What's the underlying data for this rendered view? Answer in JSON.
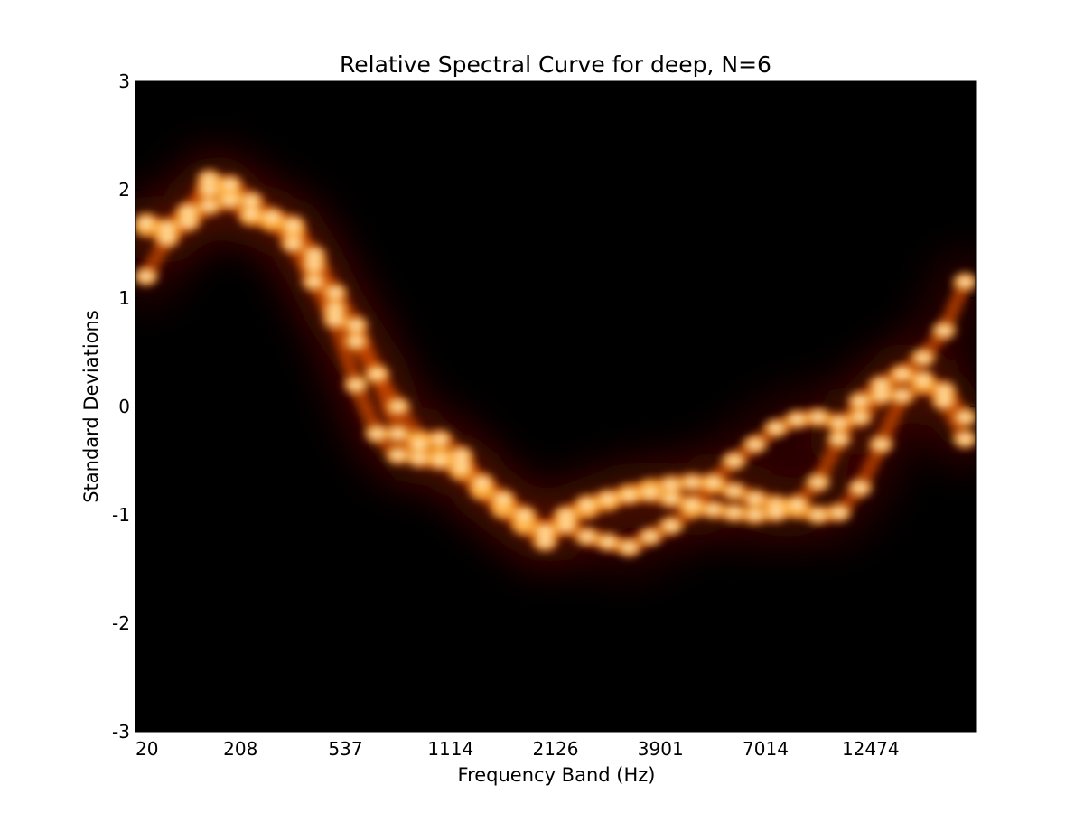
{
  "chart_data": {
    "type": "heatmap",
    "title": "Relative Spectral Curve for deep, N=6",
    "xlabel": "Frequency Band (Hz)",
    "ylabel": "Standard Deviations",
    "ylim": [
      -3,
      3
    ],
    "x_tick_labels": [
      "20",
      "208",
      "537",
      "1114",
      "2126",
      "3901",
      "7014",
      "12474"
    ],
    "y_tick_labels": [
      "3",
      "2",
      "1",
      "0",
      "-1",
      "-2",
      "-3"
    ],
    "colormap": "afmhot",
    "colors": {
      "low": "#000000",
      "mid": "#c84800",
      "high": "#ffffff",
      "background": "#ffffff"
    },
    "band_count": 40,
    "series": [
      {
        "values": [
          1.65,
          1.6,
          1.75,
          2.1,
          1.95,
          1.75,
          1.7,
          1.62,
          1.3,
          0.9,
          0.6,
          0.3,
          0.0,
          -0.3,
          -0.45,
          -0.6,
          -0.78,
          -0.95,
          -1.1,
          -1.25,
          -1.05,
          -0.95,
          -0.88,
          -0.8,
          -0.75,
          -0.72,
          -0.7,
          -0.72,
          -0.78,
          -0.85,
          -0.9,
          -0.95,
          -1.0,
          -0.98,
          -0.75,
          -0.35,
          0.1,
          0.2,
          0.15,
          -0.1
        ]
      },
      {
        "values": [
          1.2,
          1.55,
          1.7,
          1.85,
          1.9,
          1.78,
          1.72,
          1.5,
          1.15,
          0.8,
          0.2,
          -0.25,
          -0.45,
          -0.35,
          -0.3,
          -0.45,
          -0.75,
          -0.9,
          -1.05,
          -1.15,
          -1.1,
          -1.2,
          -1.25,
          -1.3,
          -1.2,
          -1.1,
          -0.95,
          -0.7,
          -0.5,
          -0.35,
          -0.2,
          -0.12,
          -0.1,
          -0.15,
          -0.1,
          0.1,
          0.3,
          0.25,
          0.05,
          -0.3
        ]
      },
      {
        "values": [
          1.7,
          1.65,
          1.8,
          2.0,
          2.05,
          1.9,
          1.75,
          1.68,
          1.4,
          1.05,
          0.75,
          0.3,
          -0.25,
          -0.48,
          -0.5,
          -0.55,
          -0.7,
          -0.85,
          -1.0,
          -1.15,
          -1.0,
          -0.9,
          -0.85,
          -0.82,
          -0.8,
          -0.85,
          -0.9,
          -0.95,
          -0.98,
          -1.0,
          -0.98,
          -0.9,
          -0.7,
          -0.3,
          0.05,
          0.2,
          0.3,
          0.45,
          0.7,
          1.15
        ]
      }
    ]
  }
}
